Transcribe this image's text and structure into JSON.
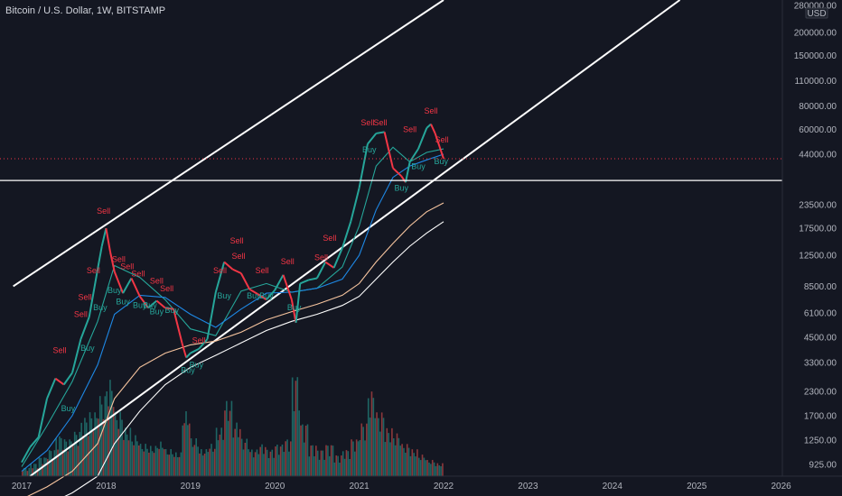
{
  "header": {
    "title": "Bitcoin / U.S. Dollar, 1W, BITSTAMP"
  },
  "chart_data": {
    "type": "line",
    "title": "Bitcoin / U.S. Dollar, 1W, BITSTAMP",
    "y_scale": "log",
    "ylim": [
      800,
      300000
    ],
    "xlim": [
      2017.0,
      2026.0
    ],
    "y_ticks": [
      "280000.00",
      "200000.00",
      "150000.00",
      "110000.00",
      "80000.00",
      "60000.00",
      "44000.00",
      "23500.00",
      "17500.00",
      "12500.00",
      "8500.00",
      "6100.00",
      "4500.00",
      "3300.00",
      "2300.00",
      "1700.00",
      "1250.00",
      "925.00"
    ],
    "y_unit": "USD",
    "x_ticks": [
      "2017",
      "2018",
      "2019",
      "2020",
      "2021",
      "2022",
      "2023",
      "2024",
      "2025",
      "2026"
    ],
    "price_labels": [
      {
        "text": "41610.01",
        "value": 41610.01,
        "color": "#f23645"
      },
      {
        "text": "31721.90",
        "value": 31721.9,
        "color": "#ffffff"
      }
    ],
    "horizontal_line": 31721.9,
    "current_price": 41610.01,
    "price": {
      "name": "BTC/USD",
      "x": [
        2017.0,
        2017.1,
        2017.2,
        2017.3,
        2017.4,
        2017.5,
        2017.6,
        2017.7,
        2017.8,
        2017.9,
        2017.95,
        2018.0,
        2018.05,
        2018.1,
        2018.2,
        2018.3,
        2018.4,
        2018.5,
        2018.6,
        2018.7,
        2018.8,
        2018.9,
        2018.95,
        2019.0,
        2019.1,
        2019.2,
        2019.3,
        2019.4,
        2019.5,
        2019.6,
        2019.7,
        2019.8,
        2019.9,
        2020.0,
        2020.1,
        2020.2,
        2020.25,
        2020.3,
        2020.4,
        2020.5,
        2020.6,
        2020.7,
        2020.8,
        2020.9,
        2021.0,
        2021.1,
        2021.2,
        2021.3,
        2021.4,
        2021.5,
        2021.55,
        2021.6,
        2021.7,
        2021.8,
        2021.85,
        2021.9,
        2022.0
      ],
      "y": [
        950,
        1150,
        1300,
        2100,
        2700,
        2500,
        2900,
        4400,
        5800,
        10500,
        14000,
        17500,
        13000,
        10200,
        7800,
        9400,
        7500,
        6500,
        7100,
        6500,
        6400,
        4200,
        3500,
        3700,
        3900,
        4400,
        7900,
        11500,
        10500,
        10000,
        8200,
        7700,
        7200,
        8100,
        9800,
        7200,
        5400,
        8800,
        9200,
        9400,
        11500,
        10700,
        13700,
        19000,
        28900,
        50000,
        57000,
        58000,
        37000,
        33500,
        31000,
        40000,
        47000,
        61000,
        64000,
        57000,
        41610
      ]
    },
    "ma_series": [
      {
        "x": [
          2017.0,
          2017.3,
          2017.6,
          2017.9,
          2018.1,
          2018.4,
          2018.7,
          2019.0,
          2019.3,
          2019.6,
          2019.9,
          2020.2,
          2020.5,
          2020.8,
          2021.0,
          2021.2,
          2021.4,
          2021.6,
          2021.8,
          2022.0
        ],
        "y": [
          900,
          1500,
          2600,
          5500,
          11000,
          9500,
          7200,
          5000,
          4600,
          8000,
          8800,
          7900,
          8300,
          10800,
          18000,
          38000,
          48000,
          40000,
          45000,
          47000
        ],
        "color": "#26a69a"
      },
      {
        "x": [
          2017.0,
          2017.3,
          2017.6,
          2017.9,
          2018.1,
          2018.4,
          2018.7,
          2019.0,
          2019.3,
          2019.6,
          2019.9,
          2020.2,
          2020.5,
          2020.8,
          2021.0,
          2021.2,
          2021.4,
          2021.6,
          2021.8,
          2022.0
        ],
        "y": [
          850,
          1100,
          1700,
          3200,
          6000,
          7600,
          7400,
          6000,
          5100,
          6400,
          7800,
          7900,
          8300,
          9300,
          12500,
          22000,
          33000,
          38000,
          41000,
          44000
        ],
        "color": "#1e88e5"
      },
      {
        "x": [
          2017.0,
          2017.3,
          2017.6,
          2017.9,
          2018.1,
          2018.4,
          2018.7,
          2019.0,
          2019.3,
          2019.6,
          2019.9,
          2020.2,
          2020.5,
          2020.8,
          2021.0,
          2021.2,
          2021.4,
          2021.6,
          2021.8,
          2022.0
        ],
        "y": [
          600,
          700,
          850,
          1200,
          2100,
          3100,
          3700,
          4100,
          4300,
          4800,
          5600,
          6200,
          6800,
          7600,
          8800,
          11500,
          14500,
          18000,
          21500,
          24000
        ],
        "color": "#f7c59f"
      },
      {
        "x": [
          2017.0,
          2017.3,
          2017.6,
          2017.9,
          2018.1,
          2018.4,
          2018.7,
          2019.0,
          2019.3,
          2019.6,
          2019.9,
          2020.2,
          2020.5,
          2020.8,
          2021.0,
          2021.2,
          2021.4,
          2021.6,
          2021.8,
          2022.0
        ],
        "y": [
          500,
          560,
          650,
          800,
          1200,
          1800,
          2500,
          3100,
          3600,
          4200,
          4900,
          5500,
          6000,
          6700,
          7500,
          9300,
          11500,
          14000,
          16500,
          19000
        ],
        "color": "#ffffff"
      }
    ],
    "trendlines": [
      {
        "x": [
          2016.9,
          2022.0
        ],
        "y": [
          8500,
          300000
        ]
      },
      {
        "x": [
          2017.1,
          2024.8
        ],
        "y": [
          800,
          300000
        ]
      }
    ],
    "signals": [
      {
        "label": "Sell",
        "x": 2017.45,
        "y": 3700,
        "color": "#f23645"
      },
      {
        "label": "Buy",
        "x": 2017.55,
        "y": 1800,
        "color": "#26a69a"
      },
      {
        "label": "Sell",
        "x": 2017.7,
        "y": 5800,
        "color": "#f23645"
      },
      {
        "label": "Sell",
        "x": 2017.75,
        "y": 7200,
        "color": "#f23645"
      },
      {
        "label": "Buy",
        "x": 2017.78,
        "y": 3800,
        "color": "#26a69a"
      },
      {
        "label": "Sell",
        "x": 2017.85,
        "y": 10000,
        "color": "#f23645"
      },
      {
        "label": "Buy",
        "x": 2017.93,
        "y": 6300,
        "color": "#26a69a"
      },
      {
        "label": "Sell",
        "x": 2017.97,
        "y": 21000,
        "color": "#f23645"
      },
      {
        "label": "Sell",
        "x": 2018.15,
        "y": 11500,
        "color": "#f23645"
      },
      {
        "label": "Buy",
        "x": 2018.1,
        "y": 7800,
        "color": "#26a69a"
      },
      {
        "label": "Buy",
        "x": 2018.2,
        "y": 6800,
        "color": "#26a69a"
      },
      {
        "label": "Sell",
        "x": 2018.25,
        "y": 10500,
        "color": "#f23645"
      },
      {
        "label": "Sell",
        "x": 2018.38,
        "y": 9600,
        "color": "#f23645"
      },
      {
        "label": "Buy",
        "x": 2018.4,
        "y": 6500,
        "color": "#26a69a"
      },
      {
        "label": "Buy",
        "x": 2018.52,
        "y": 6500,
        "color": "#26a69a"
      },
      {
        "label": "Sell",
        "x": 2018.6,
        "y": 8800,
        "color": "#f23645"
      },
      {
        "label": "Buy",
        "x": 2018.6,
        "y": 6000,
        "color": "#26a69a"
      },
      {
        "label": "Sell",
        "x": 2018.72,
        "y": 8000,
        "color": "#f23645"
      },
      {
        "label": "Buy",
        "x": 2018.78,
        "y": 6100,
        "color": "#26a69a"
      },
      {
        "label": "Sell",
        "x": 2019.1,
        "y": 4200,
        "color": "#f23645"
      },
      {
        "label": "Buy",
        "x": 2018.97,
        "y": 2900,
        "color": "#26a69a"
      },
      {
        "label": "Buy",
        "x": 2019.07,
        "y": 3100,
        "color": "#26a69a"
      },
      {
        "label": "Sell",
        "x": 2019.35,
        "y": 10000,
        "color": "#f23645"
      },
      {
        "label": "Buy",
        "x": 2019.4,
        "y": 7300,
        "color": "#26a69a"
      },
      {
        "label": "Sell",
        "x": 2019.55,
        "y": 14500,
        "color": "#f23645"
      },
      {
        "label": "Sell",
        "x": 2019.57,
        "y": 12000,
        "color": "#f23645"
      },
      {
        "label": "Buy",
        "x": 2019.75,
        "y": 7300,
        "color": "#26a69a"
      },
      {
        "label": "Sell",
        "x": 2019.85,
        "y": 10000,
        "color": "#f23645"
      },
      {
        "label": "Buy",
        "x": 2019.9,
        "y": 7300,
        "color": "#26a69a"
      },
      {
        "label": "Sell",
        "x": 2020.15,
        "y": 11200,
        "color": "#f23645"
      },
      {
        "label": "Buy",
        "x": 2020.23,
        "y": 6300,
        "color": "#26a69a"
      },
      {
        "label": "Sell",
        "x": 2020.55,
        "y": 11800,
        "color": "#f23645"
      },
      {
        "label": "Sell",
        "x": 2020.65,
        "y": 15000,
        "color": "#f23645"
      },
      {
        "label": "Sell",
        "x": 2021.1,
        "y": 63000,
        "color": "#f23645"
      },
      {
        "label": "Sell",
        "x": 2021.25,
        "y": 63000,
        "color": "#f23645"
      },
      {
        "label": "Buy",
        "x": 2021.12,
        "y": 45000,
        "color": "#26a69a"
      },
      {
        "label": "Buy",
        "x": 2021.5,
        "y": 28000,
        "color": "#26a69a"
      },
      {
        "label": "Buy",
        "x": 2021.7,
        "y": 36500,
        "color": "#26a69a"
      },
      {
        "label": "Sell",
        "x": 2021.6,
        "y": 58000,
        "color": "#f23645"
      },
      {
        "label": "Sell",
        "x": 2021.85,
        "y": 73000,
        "color": "#f23645"
      },
      {
        "label": "Sell",
        "x": 2021.98,
        "y": 51000,
        "color": "#f23645"
      },
      {
        "label": "Buy",
        "x": 2021.97,
        "y": 39000,
        "color": "#26a69a"
      }
    ],
    "volume": {
      "x": [
        2017.0,
        2017.1,
        2017.2,
        2017.3,
        2017.4,
        2017.5,
        2017.6,
        2017.7,
        2017.8,
        2017.9,
        2018.0,
        2018.1,
        2018.2,
        2018.3,
        2018.4,
        2018.5,
        2018.6,
        2018.7,
        2018.8,
        2018.9,
        2019.0,
        2019.1,
        2019.2,
        2019.3,
        2019.4,
        2019.5,
        2019.6,
        2019.7,
        2019.8,
        2019.9,
        2020.0,
        2020.1,
        2020.2,
        2020.3,
        2020.4,
        2020.5,
        2020.6,
        2020.7,
        2020.8,
        2020.9,
        2021.0,
        2021.1,
        2021.2,
        2021.3,
        2021.4,
        2021.5,
        2021.6,
        2021.7,
        2021.8,
        2021.9
      ],
      "v": [
        0.08,
        0.12,
        0.18,
        0.25,
        0.38,
        0.35,
        0.42,
        0.55,
        0.6,
        0.75,
        0.9,
        0.6,
        0.45,
        0.38,
        0.3,
        0.28,
        0.32,
        0.25,
        0.22,
        0.6,
        0.35,
        0.25,
        0.3,
        0.45,
        0.7,
        0.5,
        0.35,
        0.25,
        0.3,
        0.25,
        0.3,
        0.35,
        0.95,
        0.5,
        0.3,
        0.25,
        0.3,
        0.2,
        0.25,
        0.35,
        0.5,
        0.8,
        0.6,
        0.45,
        0.4,
        0.3,
        0.25,
        0.2,
        0.15,
        0.12
      ]
    }
  }
}
